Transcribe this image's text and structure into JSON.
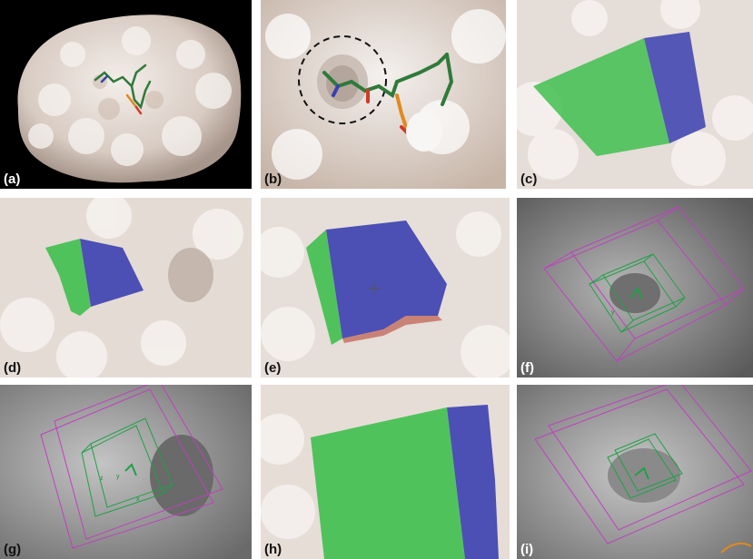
{
  "panels": [
    {
      "label": "(a)"
    },
    {
      "label": "(b)"
    },
    {
      "label": "(c)"
    },
    {
      "label": "(d)"
    },
    {
      "label": "(e)"
    },
    {
      "label": "(f)"
    },
    {
      "label": "(g)"
    },
    {
      "label": "(h)"
    },
    {
      "label": "(i)"
    }
  ],
  "colors": {
    "protein_surface": "#e9e3df",
    "surface_shadow": "#b9a89c",
    "ligand_carbon": "#2f7a3a",
    "ligand_oxygen": "#d23a2a",
    "phosphate": "#e08a1e",
    "site_green": "#3fbf4f",
    "site_blue": "#3b3fb0",
    "grid_box_outer": "#c040c0",
    "grid_box_inner": "#1fa047",
    "gray_surface": "#9a9a9a",
    "background_black": "#000000"
  }
}
